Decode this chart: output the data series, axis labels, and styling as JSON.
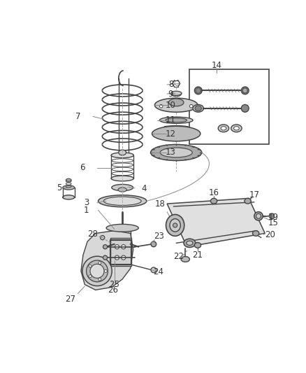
{
  "background_color": "#ffffff",
  "line_color": "#444444",
  "label_color": "#333333",
  "fig_width": 4.38,
  "fig_height": 5.33,
  "dpi": 100
}
